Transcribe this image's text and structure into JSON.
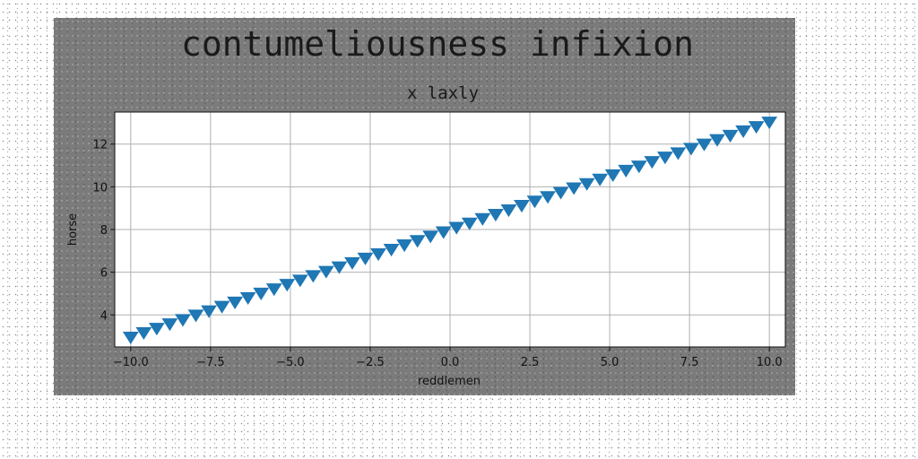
{
  "chart_data": {
    "type": "scatter",
    "title": "contumeliousness infixion",
    "subtitle": "x laxly",
    "xlabel": "reddlemen",
    "ylabel": "horse",
    "xlim": [
      -10.5,
      10.5
    ],
    "ylim": [
      2.5,
      13.5
    ],
    "xticks": [
      -10.0,
      -7.5,
      -5.0,
      -2.5,
      0.0,
      2.5,
      5.0,
      7.5,
      10.0
    ],
    "xtick_labels": [
      "−10.0",
      "−7.5",
      "−5.0",
      "−2.5",
      "0.0",
      "2.5",
      "5.0",
      "7.5",
      "10.0"
    ],
    "yticks": [
      4,
      6,
      8,
      10,
      12
    ],
    "ytick_labels": [
      "4",
      "6",
      "8",
      "10",
      "12"
    ],
    "grid": true,
    "marker": "triangle-down",
    "color": "#1f77b4",
    "series": [
      {
        "x": [
          -10.0,
          -9.592,
          -9.184,
          -8.776,
          -8.367,
          -7.959,
          -7.551,
          -7.143,
          -6.735,
          -6.327,
          -5.918,
          -5.51,
          -5.102,
          -4.694,
          -4.286,
          -3.878,
          -3.469,
          -3.061,
          -2.653,
          -2.245,
          -1.837,
          -1.429,
          -1.02,
          -0.612,
          -0.204,
          0.204,
          0.612,
          1.02,
          1.429,
          1.837,
          2.245,
          2.653,
          3.061,
          3.469,
          3.878,
          4.286,
          4.694,
          5.102,
          5.51,
          5.918,
          6.327,
          6.735,
          7.143,
          7.551,
          7.959,
          8.367,
          8.776,
          9.184,
          9.592,
          10.0
        ],
        "y": [
          3.0,
          3.21,
          3.41,
          3.62,
          3.82,
          4.03,
          4.23,
          4.44,
          4.64,
          4.85,
          5.06,
          5.26,
          5.47,
          5.67,
          5.88,
          6.08,
          6.29,
          6.49,
          6.7,
          6.9,
          7.11,
          7.32,
          7.52,
          7.73,
          7.93,
          8.14,
          8.34,
          8.55,
          8.75,
          8.96,
          9.17,
          9.37,
          9.58,
          9.78,
          9.99,
          10.19,
          10.4,
          10.6,
          10.81,
          11.01,
          11.22,
          11.43,
          11.63,
          11.84,
          12.04,
          12.25,
          12.45,
          12.66,
          12.86,
          13.07
        ]
      }
    ]
  }
}
